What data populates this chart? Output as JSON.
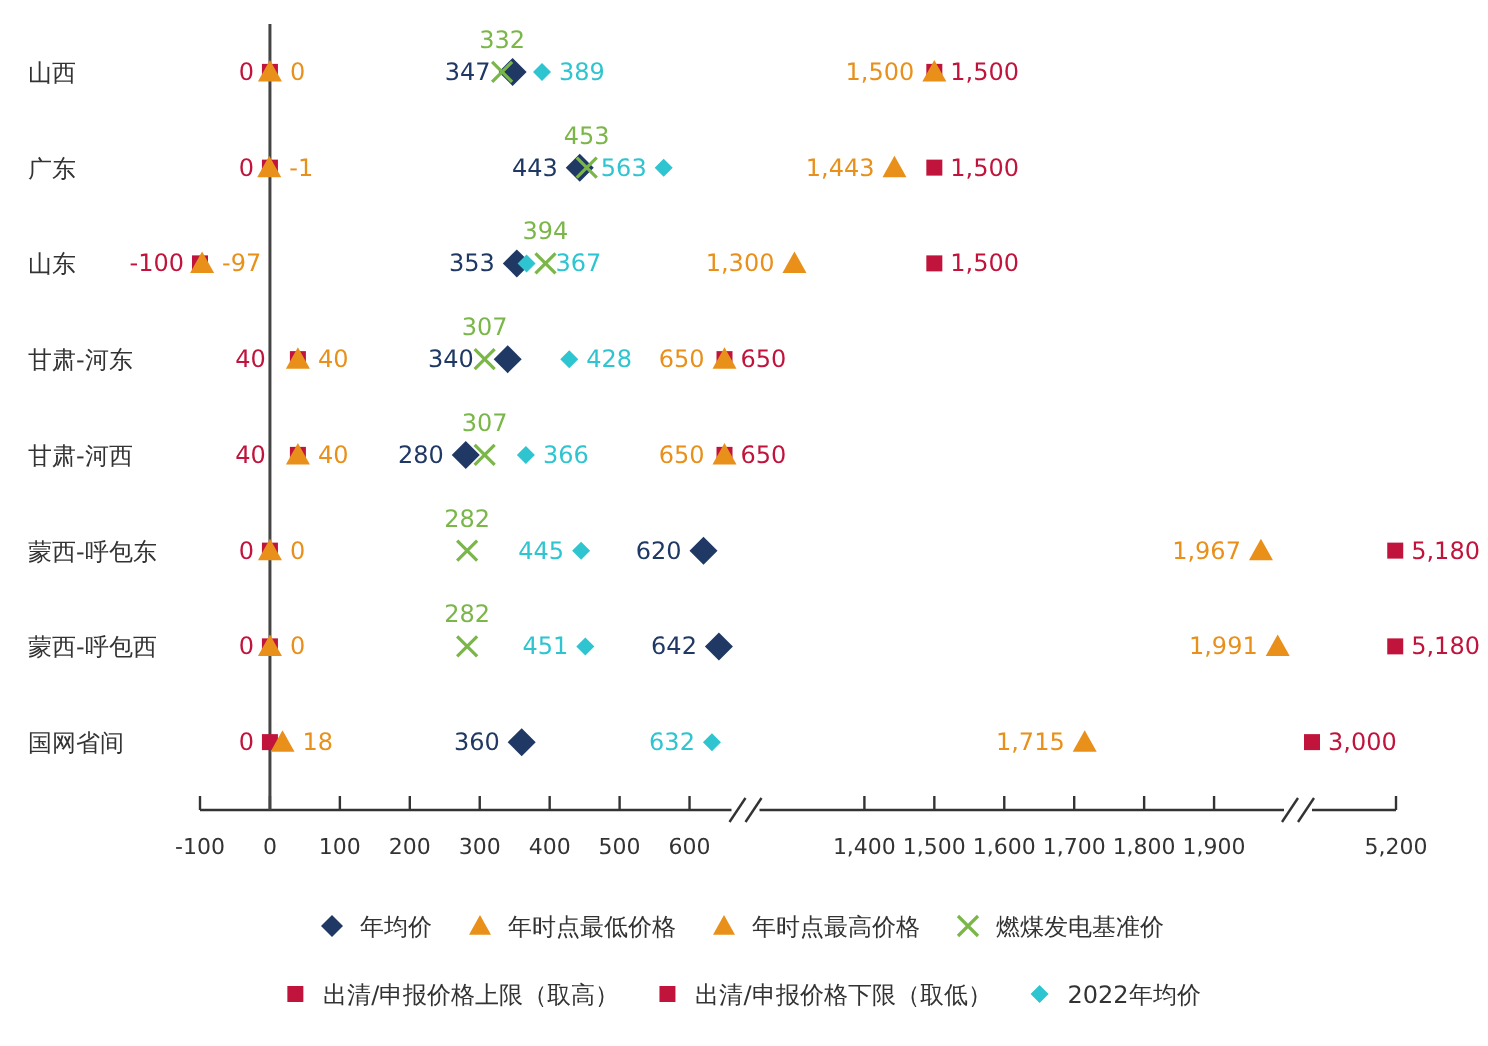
{
  "chart_data": [
    {
      "type": "scatter",
      "orientation": "horizontal",
      "legend": "bottom",
      "categories": [
        "山西",
        "广东",
        "山东",
        "甘肃-河东",
        "甘肃-河西",
        "蒙西-呼包东",
        "蒙西-呼包西",
        "国网省间"
      ],
      "xlim": [
        -100,
        660
      ],
      "xticks": [
        -100,
        0,
        100,
        200,
        300,
        400,
        500,
        600
      ],
      "series": [
        {
          "name": "年均价",
          "color": "#1f3864",
          "marker": "diamond",
          "values": [
            347,
            443,
            353,
            340,
            280,
            620,
            642,
            360
          ],
          "value_labels": [
            "347",
            "443",
            "353",
            "340",
            "280",
            "620",
            "642",
            "360"
          ]
        },
        {
          "name": "年时点最低价格",
          "color": "#e8901a",
          "marker": "triangle",
          "values": [
            0,
            -1,
            -97,
            40,
            40,
            0,
            0,
            18
          ],
          "value_labels": [
            "0",
            "-1",
            "-97",
            "40",
            "40",
            "0",
            "0",
            "18"
          ]
        },
        {
          "name": "年时点最高价格",
          "color": "#e8901a",
          "marker": "triangle",
          "values": [
            null,
            null,
            null,
            650,
            650,
            null,
            null,
            null
          ],
          "value_labels": [
            null,
            null,
            null,
            "650",
            "650",
            null,
            null,
            null
          ]
        },
        {
          "name": "燃煤发电基准价",
          "color": "#7ab648",
          "marker": "cross",
          "values": [
            332,
            453,
            394,
            307,
            307,
            282,
            282,
            null
          ],
          "value_labels": [
            "332",
            "453",
            "394",
            "307",
            "307",
            "282",
            "282",
            null
          ]
        },
        {
          "name": "出清/申报价格上限（取高）",
          "color": "#c0143c",
          "marker": "square",
          "values": [
            null,
            null,
            null,
            650,
            650,
            null,
            null,
            null
          ],
          "value_labels": [
            null,
            null,
            null,
            "650",
            "650",
            null,
            null,
            null
          ]
        },
        {
          "name": "出清/申报价格下限（取低）",
          "color": "#c0143c",
          "marker": "square",
          "values": [
            0,
            0,
            -100,
            40,
            40,
            0,
            0,
            0
          ],
          "value_labels": [
            "0",
            "0",
            "-100",
            "40",
            "40",
            "0",
            "0",
            "0"
          ]
        },
        {
          "name": "2022年均价",
          "color": "#2ec4d0",
          "marker": "diamond",
          "values": [
            389,
            563,
            367,
            428,
            366,
            445,
            451,
            632
          ],
          "value_labels": [
            "389",
            "563",
            "367",
            "428",
            "366",
            "445",
            "451",
            "632"
          ]
        }
      ]
    },
    {
      "type": "scatter",
      "orientation": "horizontal",
      "tick_labels": "x",
      "categories": [
        null,
        null,
        null,
        null,
        null,
        null,
        null,
        null
      ],
      "xlim": [
        1250,
        2000
      ],
      "xticks": [
        {
          "value": 1400,
          "label": "1,400"
        },
        {
          "value": 1500,
          "label": "1,500"
        },
        {
          "value": 1600,
          "label": "1,600"
        },
        {
          "value": 1700,
          "label": "1,700"
        },
        {
          "value": 1800,
          "label": "1,800"
        },
        {
          "value": 1900,
          "label": "1,900"
        }
      ],
      "series": [
        {
          "color": "#e8901a",
          "marker": "triangle",
          "values": [
            1500,
            1443,
            1300,
            null,
            null,
            1967,
            1991,
            1715
          ],
          "value_labels": [
            "1,500",
            "1,443",
            "1,300",
            null,
            null,
            "1,967",
            "1,991",
            "1,715"
          ]
        },
        {
          "color": "#c0143c",
          "marker": "square",
          "values": [
            1500,
            1500,
            1500,
            null,
            null,
            null,
            null,
            null
          ],
          "value_labels": [
            "1,500",
            "1,500",
            "1,500",
            null,
            null,
            null,
            null,
            null
          ]
        }
      ]
    },
    {
      "type": "scatter",
      "orientation": "horizontal",
      "xlim": [
        3000,
        5200
      ],
      "annotations": [
        "5,200"
      ],
      "tick_labels": "x",
      "categories": [
        null,
        null,
        null,
        null,
        null,
        null,
        null,
        null
      ],
      "series": [
        {
          "color": "#c0143c",
          "marker": "square",
          "values": [
            null,
            null,
            null,
            null,
            null,
            5180,
            5180,
            3000
          ],
          "value_labels": [
            null,
            null,
            null,
            null,
            null,
            "5,180",
            "5,180",
            "3,000"
          ]
        }
      ]
    }
  ]
}
